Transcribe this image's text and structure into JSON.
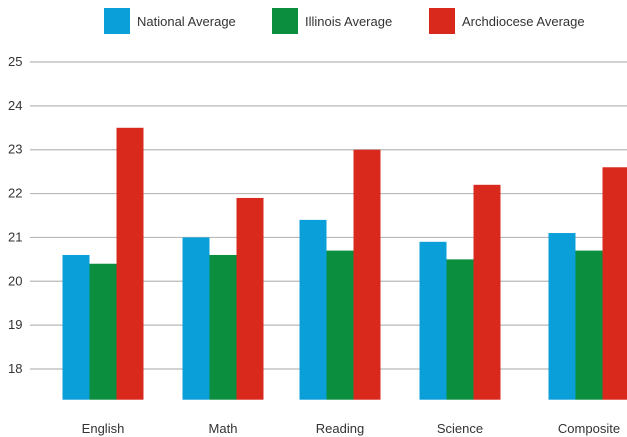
{
  "colors": {
    "national": "#0a9fd8",
    "illinois": "#0b8f3e",
    "archdiocese": "#d8291c",
    "grid": "#b8b8b8",
    "text": "#333333"
  },
  "chart_data": {
    "type": "bar",
    "title": "",
    "xlabel": "",
    "ylabel": "",
    "categories": [
      "English",
      "Math",
      "Reading",
      "Science",
      "Composite"
    ],
    "series": [
      {
        "name": "National Average",
        "color": "#0a9fd8",
        "values": [
          20.6,
          21.0,
          21.4,
          20.9,
          21.1
        ]
      },
      {
        "name": "Illinois Average",
        "color": "#0b8f3e",
        "values": [
          20.4,
          20.6,
          20.7,
          20.5,
          20.7
        ]
      },
      {
        "name": "Archdiocese Average",
        "color": "#d8291c",
        "values": [
          23.5,
          21.9,
          23.0,
          22.2,
          22.6
        ]
      }
    ],
    "yticks": [
      "18",
      "19",
      "20",
      "21",
      "22",
      "23",
      "24",
      "25"
    ],
    "ylim": [
      17.3,
      25.2
    ],
    "grid": true,
    "legend": "top"
  }
}
